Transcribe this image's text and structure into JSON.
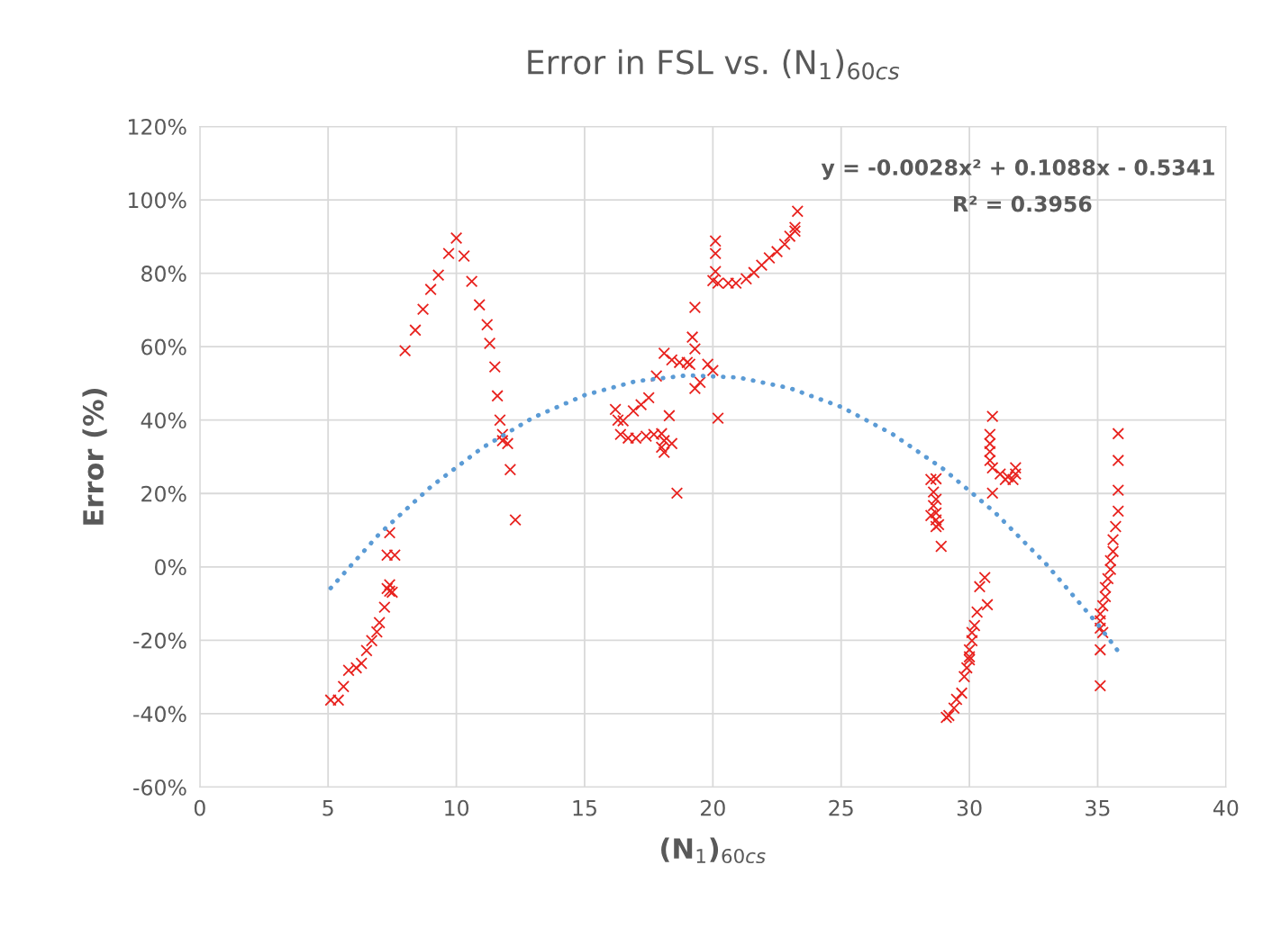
{
  "chart_data": {
    "type": "scatter",
    "title": "Error in FSL vs. (N$_{1}$)$_{60cs}$",
    "xlabel": "(N$_{1}$)$_{60cs}$",
    "ylabel": "Error (%)",
    "annotations": [
      "y = -0.0028x² + 0.1088x - 0.5341",
      "R² = 0.3956"
    ],
    "xlim": [
      0,
      40
    ],
    "xticks": [
      0,
      5,
      10,
      15,
      20,
      25,
      30,
      35,
      40
    ],
    "ylim": [
      -60,
      120
    ],
    "yticks": [
      {
        "value": -60,
        "label": "-60%"
      },
      {
        "value": -40,
        "label": "-40%"
      },
      {
        "value": -20,
        "label": "-20%"
      },
      {
        "value": 0,
        "label": "0%"
      },
      {
        "value": 20,
        "label": "20%"
      },
      {
        "value": 40,
        "label": "40%"
      },
      {
        "value": 60,
        "label": "60%"
      },
      {
        "value": 80,
        "label": "80%"
      },
      {
        "value": 100,
        "label": "100%"
      },
      {
        "value": 120,
        "label": "120%"
      }
    ],
    "grid": true,
    "legend": false,
    "series": [
      {
        "color": "#e8221e",
        "marker": "cross",
        "x": [
          5.1,
          5.4,
          5.6,
          5.8,
          6.1,
          6.3,
          6.5,
          6.7,
          6.9,
          7.0,
          7.2,
          7.3,
          7.4,
          7.4,
          7.5,
          7.3,
          7.6,
          7.4,
          8.0,
          8.4,
          8.7,
          9.0,
          9.3,
          9.7,
          10.0,
          10.3,
          10.6,
          10.9,
          11.2,
          11.3,
          11.5,
          11.6,
          11.7,
          11.8,
          11.8,
          12.0,
          12.1,
          12.3,
          23.3,
          23.2,
          20.1,
          20.1,
          20.1,
          20.0,
          20.2,
          20.6,
          20.9,
          21.3,
          21.6,
          21.9,
          22.2,
          22.5,
          22.8,
          23.0,
          23.2,
          19.3,
          19.2,
          19.3,
          18.1,
          18.4,
          18.7,
          19.0,
          19.1,
          19.8,
          20.0,
          19.5,
          19.3,
          17.8,
          17.5,
          17.2,
          16.9,
          16.2,
          16.3,
          16.5,
          18.3,
          20.2,
          16.4,
          16.7,
          17.0,
          17.4,
          17.7,
          18.0,
          18.1,
          18.4,
          18.0,
          18.1,
          18.6,
          28.5,
          28.7,
          28.6,
          28.7,
          28.6,
          28.7,
          28.5,
          28.7,
          28.8,
          28.7,
          28.9,
          30.9,
          30.8,
          30.8,
          30.8,
          30.8,
          30.9,
          31.2,
          31.5,
          31.7,
          31.8,
          31.8,
          31.4,
          30.9,
          30.6,
          30.4,
          30.7,
          30.3,
          30.2,
          30.1,
          30.1,
          30.0,
          30.0,
          30.0,
          29.9,
          29.8,
          29.7,
          29.5,
          29.4,
          29.2,
          29.1,
          35.8,
          35.8,
          35.8,
          35.8,
          35.7,
          35.6,
          35.6,
          35.5,
          35.5,
          35.4,
          35.3,
          35.3,
          35.2,
          35.1,
          35.1,
          35.1,
          35.2,
          35.1,
          35.1
        ],
        "values": [
          -36.3,
          -36.3,
          -32.6,
          -28.2,
          -27.5,
          -26.3,
          -22.8,
          -20.1,
          -17.7,
          -15.2,
          -11.0,
          -5.9,
          -4.9,
          -6.6,
          -6.9,
          3.2,
          3.2,
          9.3,
          58.9,
          64.5,
          70.2,
          75.6,
          79.5,
          85.4,
          89.6,
          84.7,
          77.8,
          71.4,
          66.0,
          60.9,
          54.5,
          46.6,
          40.0,
          36.1,
          34.4,
          33.6,
          26.5,
          12.8,
          96.9,
          92.5,
          88.8,
          85.4,
          80.5,
          78.0,
          77.3,
          77.3,
          77.3,
          78.5,
          80.2,
          82.2,
          84.2,
          85.9,
          87.9,
          90.1,
          91.5,
          70.7,
          62.6,
          59.4,
          58.2,
          56.4,
          55.7,
          55.7,
          55.2,
          55.2,
          53.5,
          50.3,
          48.6,
          52.0,
          46.1,
          44.2,
          42.5,
          42.9,
          40.0,
          39.8,
          41.2,
          40.5,
          36.1,
          35.1,
          35.1,
          35.6,
          36.1,
          36.3,
          34.4,
          33.6,
          32.6,
          31.2,
          20.1,
          23.8,
          24.0,
          20.4,
          18.4,
          16.7,
          14.7,
          14.0,
          12.8,
          11.5,
          11.0,
          5.6,
          41.0,
          36.1,
          33.6,
          31.4,
          29.0,
          27.0,
          25.3,
          24.5,
          23.8,
          25.3,
          27.0,
          23.8,
          20.1,
          -2.9,
          -5.4,
          -10.3,
          -12.3,
          -16.0,
          -17.9,
          -20.1,
          -22.6,
          -24.5,
          -25.3,
          -27.5,
          -29.9,
          -34.4,
          -36.1,
          -38.5,
          -40.5,
          -41.0,
          36.3,
          29.0,
          20.9,
          15.2,
          11.0,
          7.4,
          4.2,
          1.7,
          -0.7,
          -3.2,
          -5.6,
          -8.1,
          -10.6,
          -12.8,
          -14.7,
          -16.7,
          -17.9,
          -22.6,
          -32.4
        ]
      },
      {
        "type": "line",
        "color": "#5b9bd5",
        "marker": "none",
        "line_style": "dotted",
        "x": [
          5.1,
          7,
          9,
          11,
          13,
          15,
          17,
          19,
          21,
          23,
          25,
          27,
          29,
          31,
          33,
          35,
          35.8
        ],
        "values": [
          -5.8,
          9.0,
          21.8,
          32.4,
          40.7,
          46.8,
          50.6,
          52.2,
          51.6,
          48.7,
          43.6,
          36.2,
          26.6,
          14.8,
          0.7,
          -15.6,
          -23.0
        ]
      }
    ]
  }
}
